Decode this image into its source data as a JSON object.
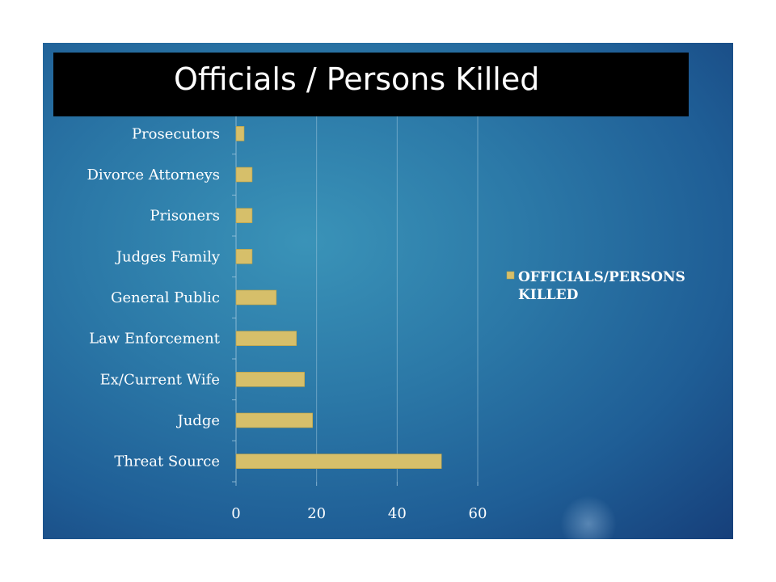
{
  "slide": {
    "title": "Officials / Persons Killed"
  },
  "colors": {
    "bar": "#d6bf6a",
    "bar_stroke": "#b89f45",
    "axis_text": "#ffffff",
    "grid": "#9fc6dd"
  },
  "chart_data": {
    "type": "bar",
    "orientation": "horizontal",
    "categories": [
      "Threat Source",
      "Judge",
      "Ex/Current Wife",
      "Law Enforcement",
      "General Public",
      "Judges Family",
      "Prisoners",
      "Divorce Attorneys",
      "Prosecutors"
    ],
    "series": [
      {
        "name": "OFFICIALS/PERSONS KILLED",
        "values": [
          51,
          19,
          17,
          15,
          10,
          4,
          4,
          4,
          2
        ]
      }
    ],
    "xticks": [
      0,
      20,
      40,
      60
    ],
    "xlim": [
      0,
      60
    ],
    "grid": true,
    "legend_position": "right"
  }
}
